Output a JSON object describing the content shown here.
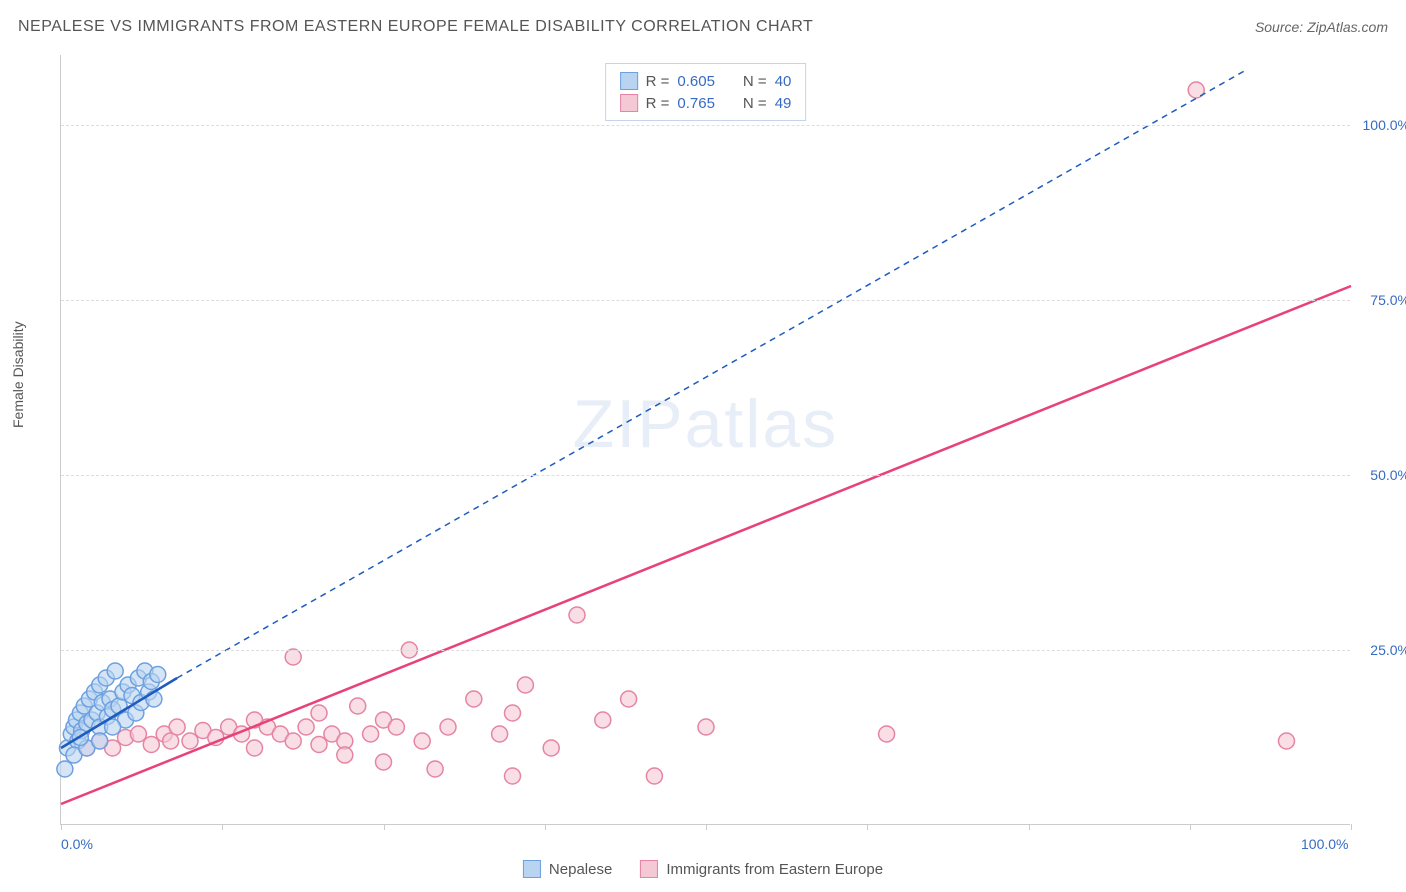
{
  "title": "NEPALESE VS IMMIGRANTS FROM EASTERN EUROPE FEMALE DISABILITY CORRELATION CHART",
  "source": "Source: ZipAtlas.com",
  "y_axis_label": "Female Disability",
  "watermark": "ZIPatlas",
  "chart": {
    "type": "scatter",
    "xlim": [
      0,
      100
    ],
    "ylim": [
      0,
      110
    ],
    "y_ticks": [
      25,
      50,
      75,
      100
    ],
    "y_tick_labels": [
      "25.0%",
      "50.0%",
      "75.0%",
      "100.0%"
    ],
    "x_ticks": [
      0,
      12.5,
      25,
      37.5,
      50,
      62.5,
      75,
      87.5,
      100
    ],
    "x_tick_labels_shown": {
      "0": "0.0%",
      "100": "100.0%"
    },
    "grid_color": "#dddddd",
    "background_color": "#ffffff",
    "axis_color": "#cccccc"
  },
  "series": {
    "nepalese": {
      "label": "Nepalese",
      "color_fill": "#b9d4f0",
      "color_stroke": "#6da0e0",
      "line_color": "#1e5bbf",
      "marker_radius": 8,
      "R": "0.605",
      "N": "40",
      "trend": {
        "x1": 0,
        "y1": 11,
        "x2": 9,
        "y2": 21,
        "dash_x1": 9,
        "dash_y1": 21,
        "dash_x2": 92,
        "dash_y2": 108
      },
      "points": [
        [
          0.5,
          11
        ],
        [
          0.8,
          13
        ],
        [
          1.0,
          14
        ],
        [
          1.2,
          15
        ],
        [
          1.3,
          12
        ],
        [
          1.5,
          16
        ],
        [
          1.6,
          13.5
        ],
        [
          1.8,
          17
        ],
        [
          2.0,
          14.5
        ],
        [
          2.2,
          18
        ],
        [
          2.4,
          15
        ],
        [
          2.6,
          19
        ],
        [
          2.8,
          16
        ],
        [
          3.0,
          20
        ],
        [
          3.0,
          14
        ],
        [
          3.2,
          17.5
        ],
        [
          3.5,
          21
        ],
        [
          3.6,
          15.5
        ],
        [
          3.8,
          18
        ],
        [
          4.0,
          16.5
        ],
        [
          4.2,
          22
        ],
        [
          4.5,
          17
        ],
        [
          4.8,
          19
        ],
        [
          5.0,
          15
        ],
        [
          5.2,
          20
        ],
        [
          5.5,
          18.5
        ],
        [
          5.8,
          16
        ],
        [
          6.0,
          21
        ],
        [
          6.2,
          17.5
        ],
        [
          6.5,
          22
        ],
        [
          6.8,
          19
        ],
        [
          7.0,
          20.5
        ],
        [
          7.2,
          18
        ],
        [
          7.5,
          21.5
        ],
        [
          0.3,
          8
        ],
        [
          1.0,
          10
        ],
        [
          2.0,
          11
        ],
        [
          1.5,
          12.5
        ],
        [
          3.0,
          12
        ],
        [
          4.0,
          14
        ]
      ]
    },
    "immigrants": {
      "label": "Immigrants from Eastern Europe",
      "color_fill": "#f5c8d5",
      "color_stroke": "#e584a5",
      "line_color": "#e8427a",
      "marker_radius": 8,
      "R": "0.765",
      "N": "49",
      "trend": {
        "x1": 0,
        "y1": 3,
        "x2": 100,
        "y2": 77
      },
      "points": [
        [
          2,
          11
        ],
        [
          3,
          12
        ],
        [
          4,
          11
        ],
        [
          5,
          12.5
        ],
        [
          6,
          13
        ],
        [
          7,
          11.5
        ],
        [
          8,
          13
        ],
        [
          8.5,
          12
        ],
        [
          9,
          14
        ],
        [
          10,
          12
        ],
        [
          11,
          13.5
        ],
        [
          12,
          12.5
        ],
        [
          13,
          14
        ],
        [
          14,
          13
        ],
        [
          15,
          15
        ],
        [
          15,
          11
        ],
        [
          16,
          14
        ],
        [
          17,
          13
        ],
        [
          18,
          24
        ],
        [
          18,
          12
        ],
        [
          19,
          14
        ],
        [
          20,
          11.5
        ],
        [
          20,
          16
        ],
        [
          21,
          13
        ],
        [
          22,
          12
        ],
        [
          22,
          10
        ],
        [
          23,
          17
        ],
        [
          24,
          13
        ],
        [
          25,
          15
        ],
        [
          25,
          9
        ],
        [
          26,
          14
        ],
        [
          27,
          25
        ],
        [
          28,
          12
        ],
        [
          29,
          8
        ],
        [
          30,
          14
        ],
        [
          32,
          18
        ],
        [
          34,
          13
        ],
        [
          35,
          16
        ],
        [
          35,
          7
        ],
        [
          36,
          20
        ],
        [
          38,
          11
        ],
        [
          40,
          30
        ],
        [
          42,
          15
        ],
        [
          44,
          18
        ],
        [
          46,
          7
        ],
        [
          50,
          14
        ],
        [
          64,
          13
        ],
        [
          88,
          105
        ],
        [
          95,
          12
        ]
      ]
    }
  },
  "legend_top": {
    "rows": [
      {
        "swatch_fill": "#b9d4f0",
        "swatch_stroke": "#6da0e0",
        "r_label": "R =",
        "r_val": "0.605",
        "n_label": "N =",
        "n_val": "40"
      },
      {
        "swatch_fill": "#f5c8d5",
        "swatch_stroke": "#e584a5",
        "r_label": "R =",
        "r_val": "0.765",
        "n_label": "N =",
        "n_val": "49"
      }
    ]
  },
  "legend_bottom": {
    "items": [
      {
        "swatch_fill": "#b9d4f0",
        "swatch_stroke": "#6da0e0",
        "label": "Nepalese"
      },
      {
        "swatch_fill": "#f5c8d5",
        "swatch_stroke": "#e584a5",
        "label": "Immigrants from Eastern Europe"
      }
    ]
  }
}
